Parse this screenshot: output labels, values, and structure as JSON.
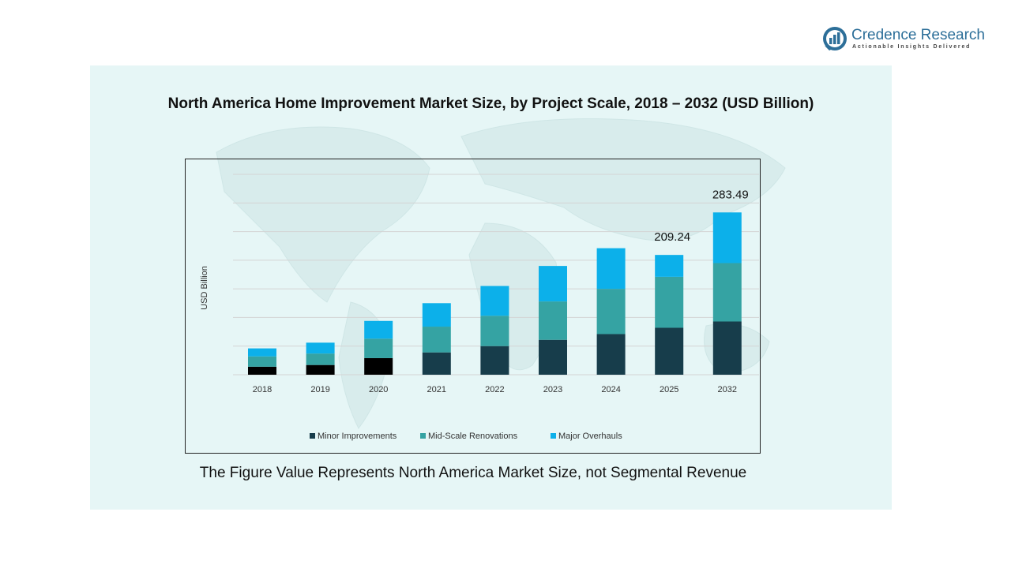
{
  "brand": {
    "name": "Credence Research",
    "tagline": "Actionable Insights Delivered",
    "icon": "credence-logo-icon"
  },
  "title": "North America Home Improvement Market Size, by Project Scale, 2018 – 2032 (USD Billion)",
  "footnote": "The Figure Value Represents North America Market Size, not Segmental Revenue",
  "colors": {
    "panel_bg": "#e6f6f6",
    "minor": "#173d4b",
    "minor_early": "#000000",
    "mid": "#35a3a3",
    "major": "#0cb0ea",
    "grid": "#d4d4d4"
  },
  "chart_data": {
    "type": "bar",
    "stacked": true,
    "categories": [
      "2018",
      "2019",
      "2020",
      "2021",
      "2022",
      "2023",
      "2024",
      "2025",
      "2032"
    ],
    "ylabel": "USD Billion",
    "xlabel": "",
    "ylim": [
      0,
      350
    ],
    "grid": true,
    "legend_position": "bottom",
    "series": [
      {
        "name": "Minor Improvements",
        "values": [
          14,
          17,
          29,
          39,
          50,
          61,
          71,
          82,
          93
        ]
      },
      {
        "name": "Mid-Scale Renovations",
        "values": [
          18,
          20,
          34,
          45,
          53,
          67,
          79,
          89,
          102
        ]
      },
      {
        "name": "Major Overhauls",
        "values": [
          14,
          19,
          31,
          41,
          52,
          62,
          71,
          38.24,
          88.49
        ]
      }
    ],
    "total_labels": [
      {
        "category": "2025",
        "text": "209.24"
      },
      {
        "category": "2032",
        "text": "283.49"
      }
    ]
  }
}
